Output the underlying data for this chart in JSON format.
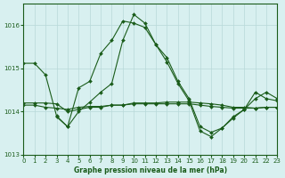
{
  "title": "Graphe pression niveau de la mer (hPa)",
  "background_color": "#d8f0f0",
  "grid_color": "#b8d8d8",
  "line_color": "#1a5c1a",
  "marker_color": "#1a5c1a",
  "ylim": [
    1013,
    1016.5
  ],
  "xlim": [
    0,
    23
  ],
  "yticks": [
    1013,
    1014,
    1015,
    1016
  ],
  "xticks": [
    0,
    1,
    2,
    3,
    4,
    5,
    6,
    7,
    8,
    9,
    10,
    11,
    12,
    13,
    14,
    15,
    16,
    17,
    18,
    19,
    20,
    21,
    22,
    23
  ],
  "series": [
    {
      "x": [
        0,
        1,
        2,
        3,
        4,
        5,
        6,
        7,
        8,
        9,
        10,
        11,
        12,
        13,
        14,
        15,
        16,
        17,
        18,
        19,
        20,
        21,
        22,
        23
      ],
      "y": [
        1015.12,
        1015.12,
        1014.85,
        1013.9,
        1013.65,
        1014.55,
        1014.7,
        1015.35,
        1015.65,
        1016.1,
        1016.05,
        1015.95,
        1015.55,
        1015.15,
        1014.65,
        1014.25,
        1013.55,
        1013.42,
        1013.62,
        1013.85,
        1014.05,
        1014.45,
        1014.3,
        1014.25
      ]
    },
    {
      "x": [
        0,
        1,
        2,
        3,
        4,
        5,
        6,
        7,
        8,
        9,
        10,
        11,
        12,
        13,
        14,
        15,
        16,
        17,
        18,
        19,
        20,
        21,
        22,
        23
      ],
      "y": [
        1014.2,
        1014.2,
        1014.2,
        1014.18,
        1014.0,
        1014.05,
        1014.1,
        1014.1,
        1014.15,
        1014.15,
        1014.2,
        1014.2,
        1014.2,
        1014.22,
        1014.22,
        1014.22,
        1014.2,
        1014.18,
        1014.15,
        1014.1,
        1014.1,
        1014.08,
        1014.1,
        1014.1
      ]
    },
    {
      "x": [
        0,
        1,
        2,
        3,
        4,
        5,
        6,
        7,
        8,
        9,
        10,
        11,
        12,
        13,
        14,
        15,
        16,
        17,
        18,
        19,
        20,
        21,
        22,
        23
      ],
      "y": [
        1014.15,
        1014.15,
        1014.1,
        1014.08,
        1014.05,
        1014.1,
        1014.12,
        1014.12,
        1014.15,
        1014.15,
        1014.18,
        1014.18,
        1014.18,
        1014.18,
        1014.18,
        1014.18,
        1014.15,
        1014.12,
        1014.1,
        1014.08,
        1014.08,
        1014.08,
        1014.1,
        1014.1
      ]
    },
    {
      "x": [
        3,
        4,
        5,
        6,
        7,
        8,
        9,
        10,
        11,
        12,
        13,
        14,
        15,
        16,
        17,
        18,
        19,
        20,
        21,
        22,
        23
      ],
      "y": [
        1013.88,
        1013.65,
        1014.0,
        1014.22,
        1014.45,
        1014.65,
        1015.65,
        1016.25,
        1016.05,
        1015.55,
        1015.25,
        1014.7,
        1014.3,
        1013.65,
        1013.52,
        1013.62,
        1013.88,
        1014.05,
        1014.3,
        1014.45,
        1014.3
      ]
    }
  ]
}
